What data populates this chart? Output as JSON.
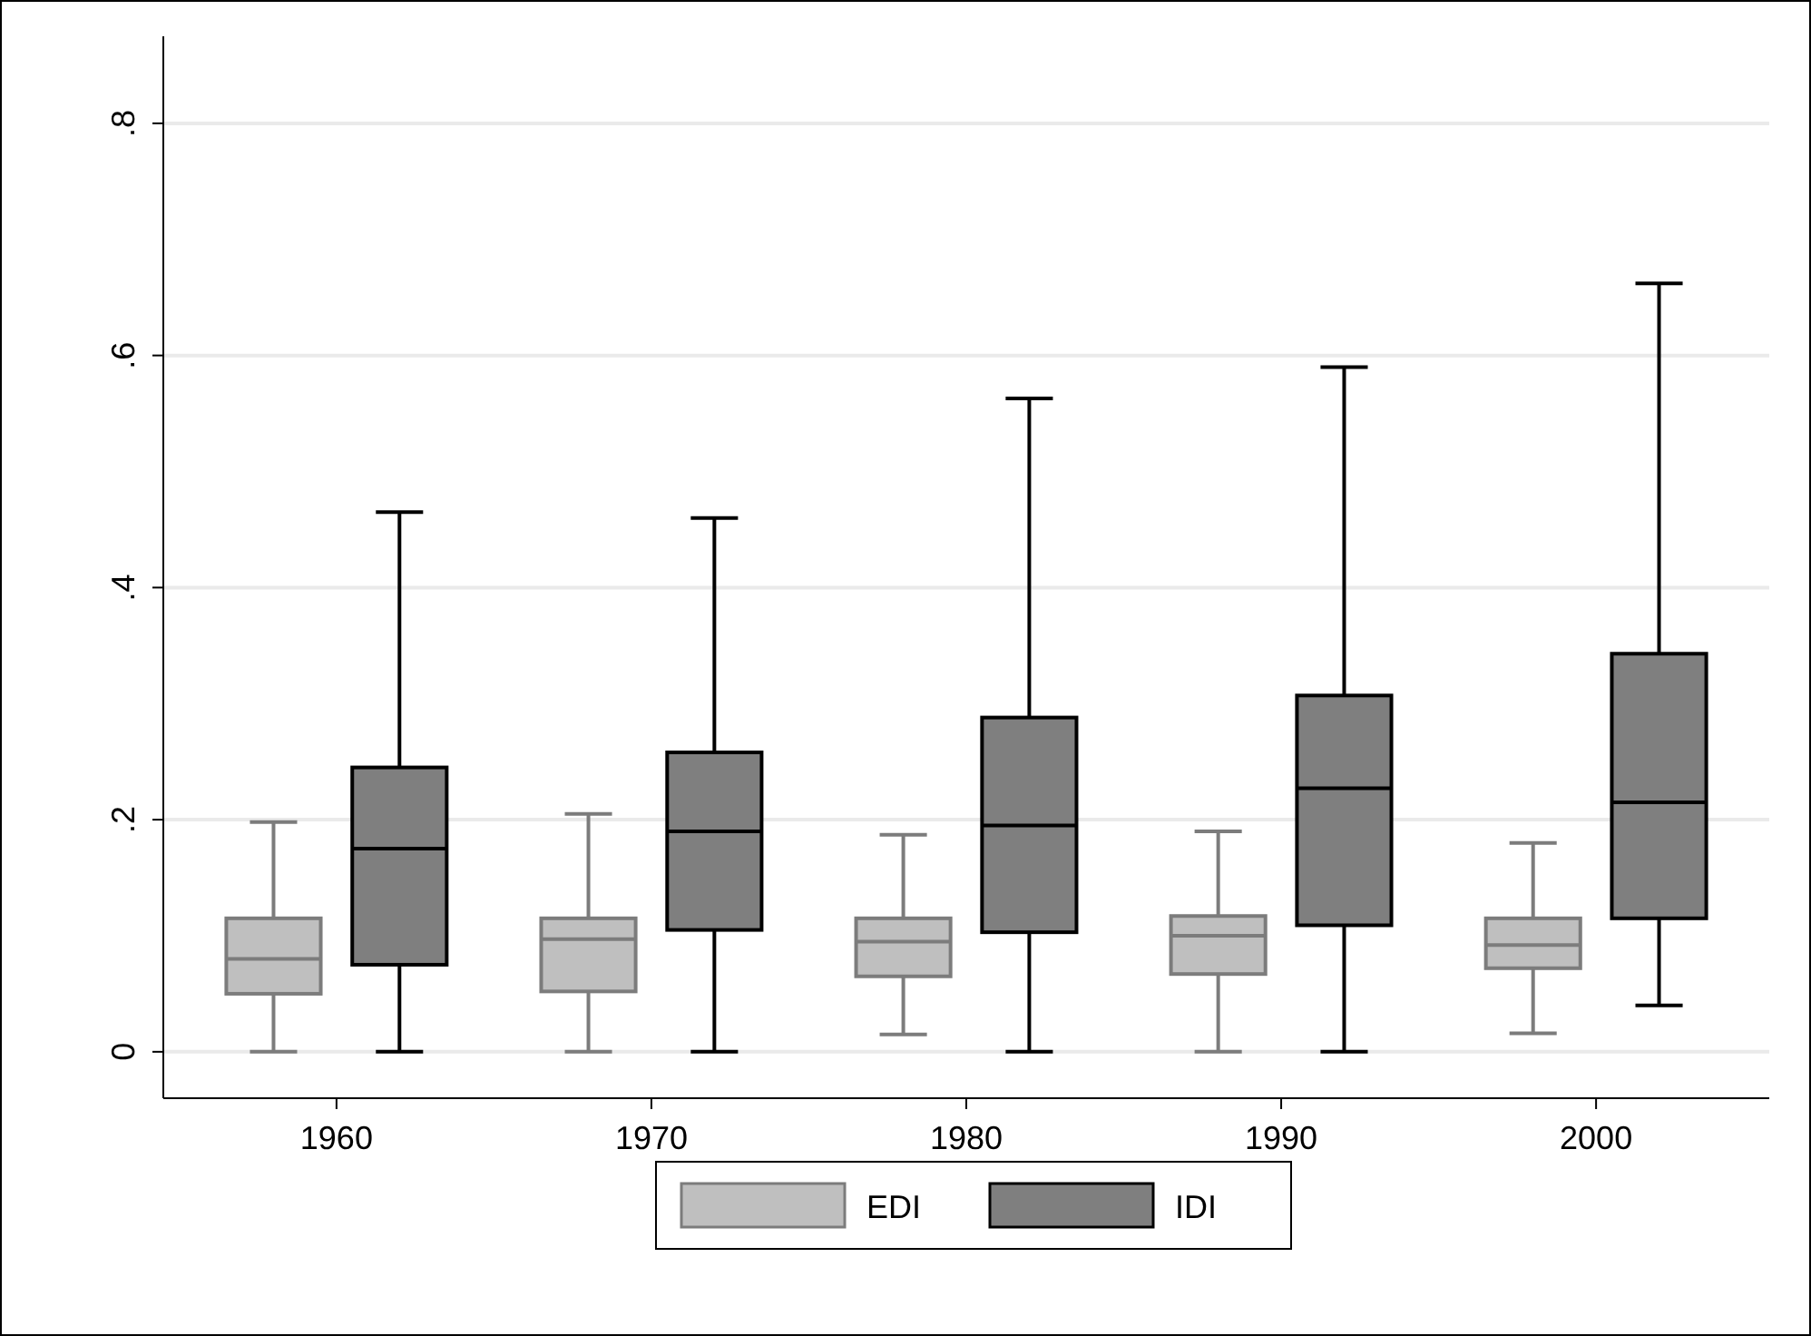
{
  "chart_data": {
    "type": "box",
    "categories": [
      "1960",
      "1970",
      "1980",
      "1990",
      "2000"
    ],
    "series": [
      {
        "name": "EDI",
        "color": "#bfbfbf",
        "boxes": [
          {
            "low": 0,
            "q1": 0.05,
            "median": 0.08,
            "q3": 0.115,
            "high": 0.198
          },
          {
            "low": 0,
            "q1": 0.052,
            "median": 0.097,
            "q3": 0.115,
            "high": 0.205
          },
          {
            "low": 0.015,
            "q1": 0.065,
            "median": 0.095,
            "q3": 0.115,
            "high": 0.187
          },
          {
            "low": 0,
            "q1": 0.067,
            "median": 0.1,
            "q3": 0.117,
            "high": 0.19
          },
          {
            "low": 0.016,
            "q1": 0.072,
            "median": 0.092,
            "q3": 0.115,
            "high": 0.18
          }
        ]
      },
      {
        "name": "IDI",
        "color": "#7f7f7f",
        "boxes": [
          {
            "low": 0,
            "q1": 0.075,
            "median": 0.175,
            "q3": 0.245,
            "high": 0.465
          },
          {
            "low": 0,
            "q1": 0.105,
            "median": 0.19,
            "q3": 0.258,
            "high": 0.46
          },
          {
            "low": 0,
            "q1": 0.103,
            "median": 0.195,
            "q3": 0.288,
            "high": 0.563
          },
          {
            "low": 0,
            "q1": 0.109,
            "median": 0.227,
            "q3": 0.307,
            "high": 0.59
          },
          {
            "low": 0.04,
            "q1": 0.115,
            "median": 0.215,
            "q3": 0.343,
            "high": 0.662
          }
        ]
      }
    ],
    "ylim": [
      -0.04,
      0.875
    ],
    "yticks": [
      {
        "value": 0,
        "label": "0"
      },
      {
        "value": 0.2,
        "label": ".2"
      },
      {
        "value": 0.4,
        "label": ".4"
      },
      {
        "value": 0.6,
        "label": ".6"
      },
      {
        "value": 0.8,
        "label": ".8"
      }
    ],
    "grid": "y",
    "legend": "bottom"
  }
}
